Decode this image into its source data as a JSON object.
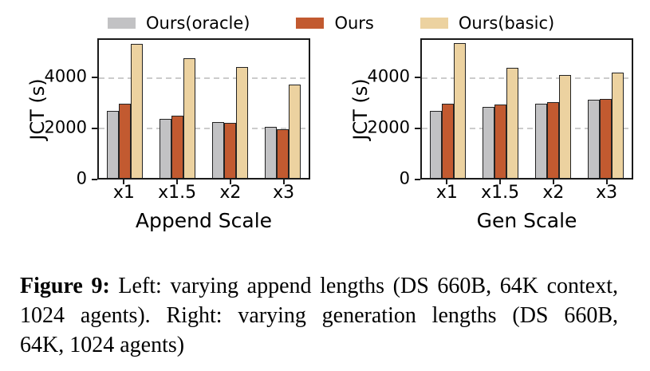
{
  "legend": [
    {
      "id": "ours-oracle",
      "label": "Ours(oracle)",
      "color": "#c2c2c4"
    },
    {
      "id": "ours",
      "label": "Ours",
      "color": "#c25a30"
    },
    {
      "id": "ours-basic",
      "label": "Ours(basic)",
      "color": "#ecd2a0"
    }
  ],
  "colors": {
    "bar_edge": "#232323",
    "axis": "#1a1a1a",
    "gridline": "#cccccc"
  },
  "chart_data": [
    {
      "type": "bar",
      "title": "",
      "xlabel": "Append Scale",
      "ylabel": "JCT (s)",
      "categories": [
        "x1",
        "x1.5",
        "x2",
        "x3"
      ],
      "series": [
        {
          "name": "Ours(oracle)",
          "color": "#c2c2c4",
          "values": [
            2700,
            2380,
            2250,
            2050
          ]
        },
        {
          "name": "Ours",
          "color": "#c25a30",
          "values": [
            2980,
            2500,
            2230,
            1970
          ]
        },
        {
          "name": "Ours(basic)",
          "color": "#ecd2a0",
          "values": [
            5400,
            4820,
            4450,
            3760
          ]
        }
      ],
      "yticks": [
        0,
        2000,
        4000
      ],
      "ylim": [
        0,
        5550
      ],
      "grid": "horizontal dashed at yticks",
      "legend_position": "above figure"
    },
    {
      "type": "bar",
      "title": "",
      "xlabel": "Gen Scale",
      "ylabel": "JCT (s)",
      "categories": [
        "x1",
        "x1.5",
        "x2",
        "x3"
      ],
      "series": [
        {
          "name": "Ours(oracle)",
          "color": "#c2c2c4",
          "values": [
            2700,
            2840,
            3000,
            3150
          ]
        },
        {
          "name": "Ours",
          "color": "#c25a30",
          "values": [
            2990,
            2950,
            3060,
            3180
          ]
        },
        {
          "name": "Ours(basic)",
          "color": "#ecd2a0",
          "values": [
            5420,
            4430,
            4140,
            4250
          ]
        }
      ],
      "yticks": [
        0,
        2000,
        4000
      ],
      "ylim": [
        0,
        5550
      ],
      "grid": "horizontal dashed at yticks",
      "legend_position": "above figure"
    }
  ],
  "caption": {
    "prefix": "Figure 9:",
    "lines": [
      "Left: varying append lengths (DS 660B, 64K context,",
      "1024 agents). Right: varying generation lengths (DS 660B,",
      "64K, 1024 agents)"
    ]
  }
}
